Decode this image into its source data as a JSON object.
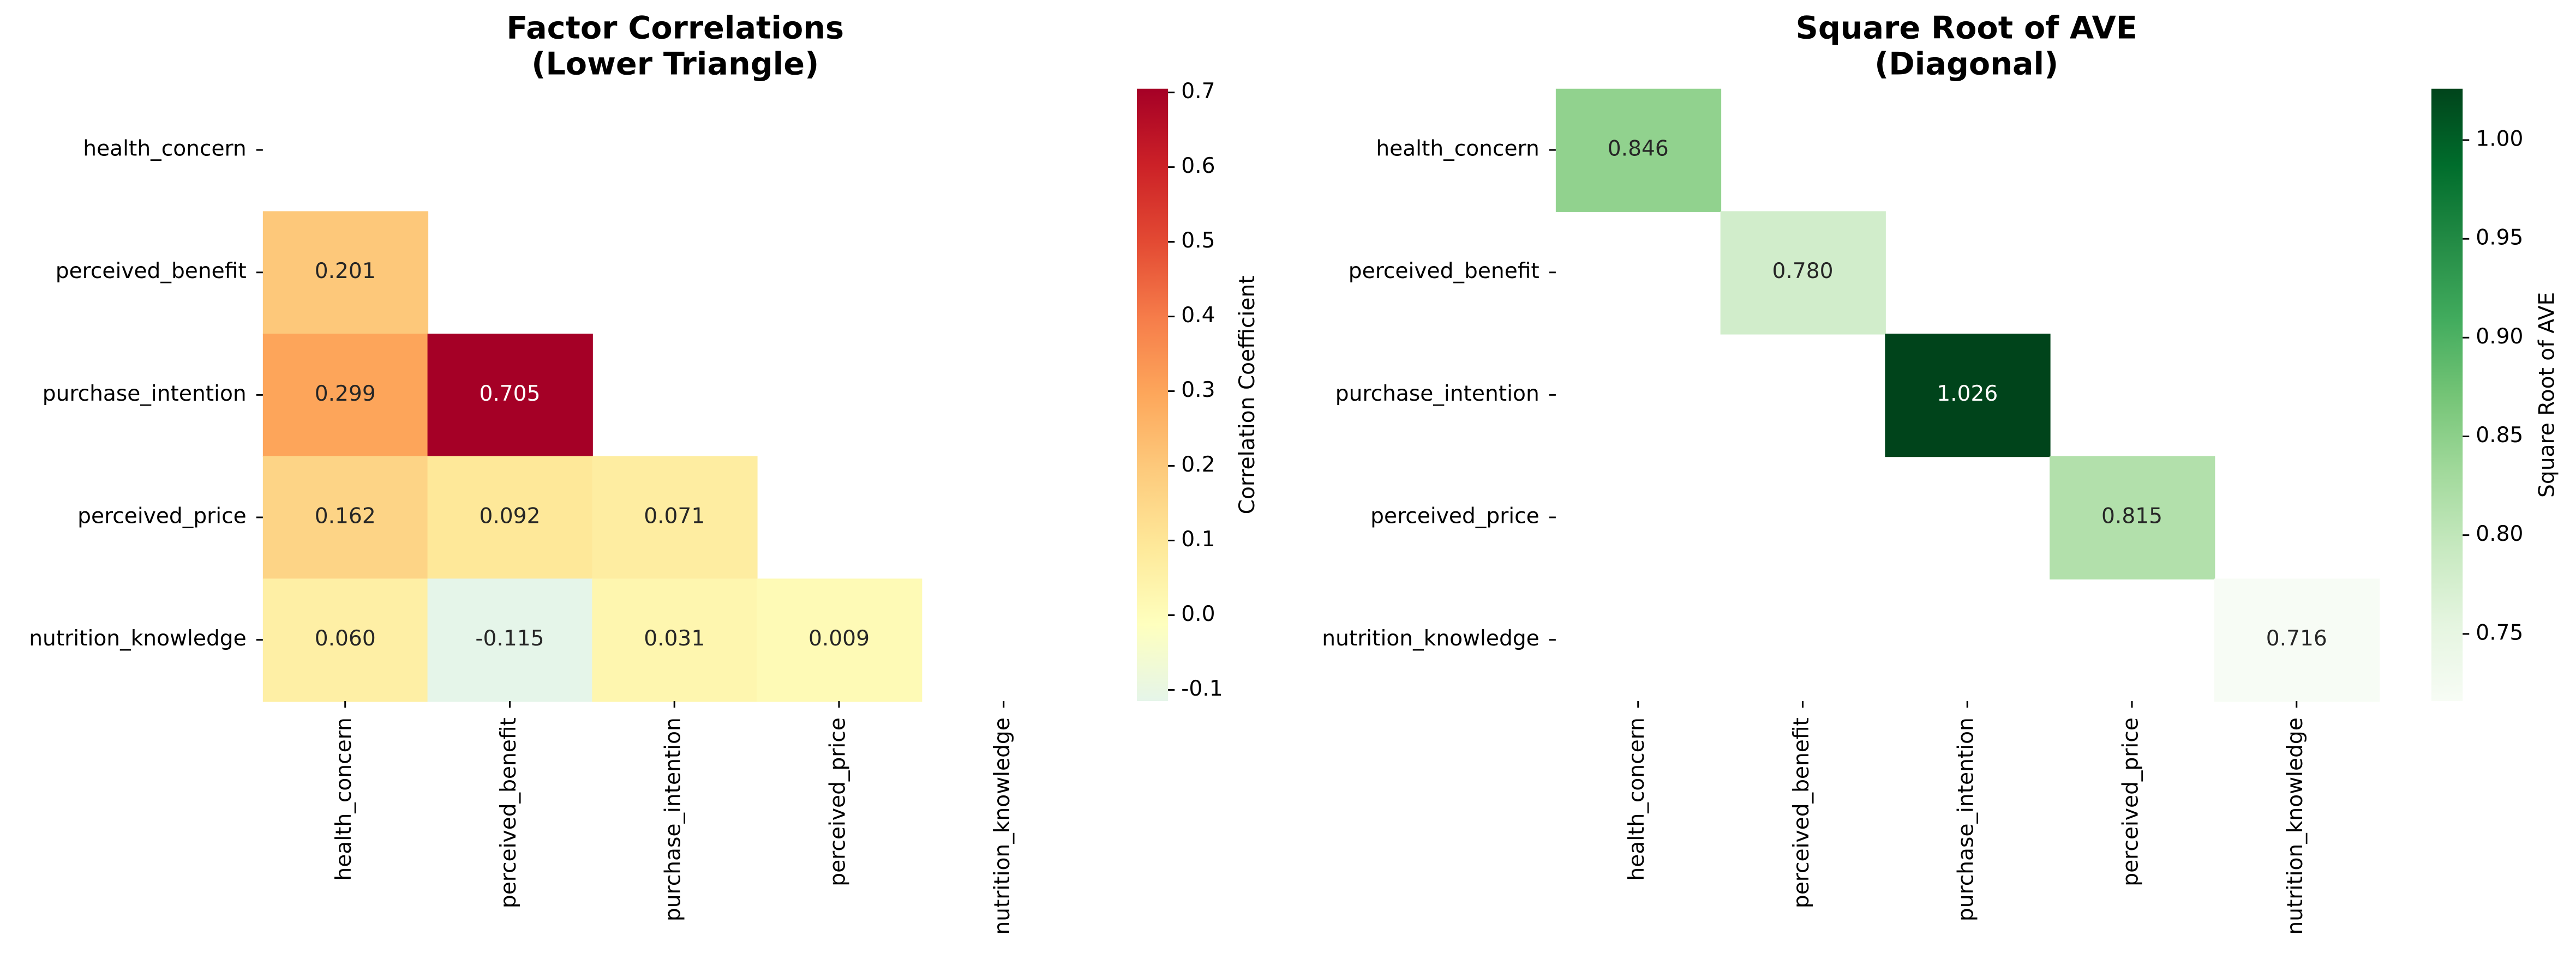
{
  "chart_data": [
    {
      "type": "heatmap",
      "title": "Factor Correlations\n(Lower Triangle)",
      "categories": [
        "health_concern",
        "perceived_benefit",
        "purchase_intention",
        "perceived_price",
        "nutrition_knowledge"
      ],
      "values": [
        [
          null,
          null,
          null,
          null,
          null
        ],
        [
          0.201,
          null,
          null,
          null,
          null
        ],
        [
          0.299,
          0.705,
          null,
          null,
          null
        ],
        [
          0.162,
          0.092,
          0.071,
          null,
          null
        ],
        [
          0.06,
          -0.115,
          0.031,
          0.009,
          null
        ]
      ],
      "value_labels": [
        [
          null,
          null,
          null,
          null,
          null
        ],
        [
          "0.201",
          null,
          null,
          null,
          null
        ],
        [
          "0.299",
          "0.705",
          null,
          null,
          null
        ],
        [
          "0.162",
          "0.092",
          "0.071",
          null,
          null
        ],
        [
          "0.060",
          "-0.115",
          "0.031",
          "0.009",
          null
        ]
      ],
      "clim": [
        -0.115,
        0.705
      ],
      "colors": [
        "#e5f5e9",
        "#feffbe",
        "#fee99a",
        "#fdcb7d",
        "#fda75b",
        "#f67d4a",
        "#e34a33",
        "#cc2127",
        "#a50026"
      ],
      "colorbar_label": "Correlation Coefficient",
      "cticks": [
        0.7,
        0.6,
        0.5,
        0.4,
        0.3,
        0.2,
        0.1,
        {
          "value": 0,
          "label": "0.0"
        },
        -0.1
      ]
    },
    {
      "type": "heatmap",
      "title": "Square Root of AVE\n(Diagonal)",
      "categories": [
        "health_concern",
        "perceived_benefit",
        "purchase_intention",
        "perceived_price",
        "nutrition_knowledge"
      ],
      "values": [
        [
          0.846,
          null,
          null,
          null,
          null
        ],
        [
          null,
          0.78,
          null,
          null,
          null
        ],
        [
          null,
          null,
          1.026,
          null,
          null
        ],
        [
          null,
          null,
          null,
          0.815,
          null
        ],
        [
          null,
          null,
          null,
          null,
          0.716
        ]
      ],
      "value_labels": [
        [
          "0.846",
          null,
          null,
          null,
          null
        ],
        [
          null,
          "0.780",
          null,
          null,
          null
        ],
        [
          null,
          null,
          "1.026",
          null,
          null
        ],
        [
          null,
          null,
          null,
          "0.815",
          null
        ],
        [
          null,
          null,
          null,
          null,
          "0.716"
        ]
      ],
      "clim": [
        0.716,
        1.026
      ],
      "colors": [
        "#f7fcf5",
        "#e5f5e0",
        "#c7e9c0",
        "#a1d99b",
        "#74c476",
        "#41ab5d",
        "#238b45",
        "#006d2c",
        "#00441b"
      ],
      "colorbar_label": "Square Root of AVE",
      "cticks": [
        {
          "value": 1,
          "label": "1.00"
        },
        0.95,
        {
          "value": 0.9,
          "label": "0.90"
        },
        0.85,
        {
          "value": 0.8,
          "label": "0.80"
        },
        0.75
      ]
    }
  ]
}
